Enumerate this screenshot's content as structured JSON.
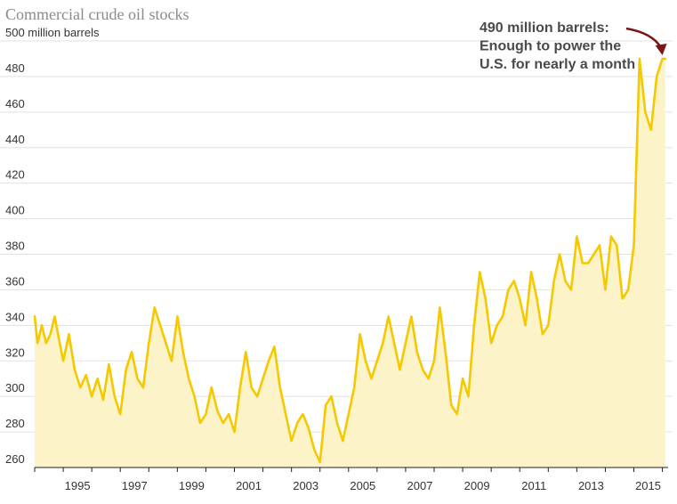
{
  "chart_data": {
    "type": "area",
    "title": "Commercial crude oil stocks",
    "ylabel": "million barrels",
    "xlabel": "",
    "ylim": [
      260,
      500
    ],
    "xlim": [
      1994.0,
      2016.2
    ],
    "y_ticks": [
      260,
      280,
      300,
      320,
      340,
      360,
      380,
      400,
      420,
      440,
      460,
      480,
      500
    ],
    "y_tick_labels": [
      "260",
      "280",
      "300",
      "320",
      "340",
      "360",
      "380",
      "400",
      "420",
      "440",
      "460",
      "480",
      "500 million barrels"
    ],
    "x_ticks": [
      1995,
      1997,
      1999,
      2001,
      2003,
      2005,
      2007,
      2009,
      2011,
      2013,
      2015
    ],
    "x_tick_labels": [
      "1995",
      "1997",
      "1999",
      "2001",
      "2003",
      "2005",
      "2007",
      "2009",
      "2011",
      "2013",
      "2015"
    ],
    "grid": "horizontal",
    "annotation": {
      "lines": [
        "490 million barrels:",
        "Enough to power the",
        "U.S. for nearly a month"
      ],
      "target": {
        "x": 2016.0,
        "y": 490
      }
    },
    "colors": {
      "line": "#f5c800",
      "fill": "#fdf3c8",
      "grid": "#e1e1e1",
      "axis": "#222222",
      "arrow": "#7a1616"
    },
    "series": [
      {
        "x": [
          1994.0,
          1994.1,
          1994.25,
          1994.4,
          1994.55,
          1994.7,
          1994.85,
          1995.0,
          1995.2,
          1995.4,
          1995.6,
          1995.8,
          1996.0,
          1996.2,
          1996.4,
          1996.6,
          1996.8,
          1997.0,
          1997.2,
          1997.4,
          1997.6,
          1997.8,
          1998.0,
          1998.2,
          1998.4,
          1998.6,
          1998.8,
          1999.0,
          1999.2,
          1999.4,
          1999.6,
          1999.8,
          2000.0,
          2000.2,
          2000.4,
          2000.6,
          2000.8,
          2001.0,
          2001.2,
          2001.4,
          2001.6,
          2001.8,
          2002.0,
          2002.2,
          2002.4,
          2002.6,
          2002.8,
          2003.0,
          2003.2,
          2003.4,
          2003.6,
          2003.8,
          2004.0,
          2004.2,
          2004.4,
          2004.6,
          2004.8,
          2005.0,
          2005.2,
          2005.4,
          2005.6,
          2005.8,
          2006.0,
          2006.2,
          2006.4,
          2006.6,
          2006.8,
          2007.0,
          2007.2,
          2007.4,
          2007.6,
          2007.8,
          2008.0,
          2008.2,
          2008.4,
          2008.6,
          2008.8,
          2009.0,
          2009.2,
          2009.4,
          2009.6,
          2009.8,
          2010.0,
          2010.2,
          2010.4,
          2010.6,
          2010.8,
          2011.0,
          2011.2,
          2011.4,
          2011.6,
          2011.8,
          2012.0,
          2012.2,
          2012.4,
          2012.6,
          2012.8,
          2013.0,
          2013.2,
          2013.4,
          2013.6,
          2013.8,
          2014.0,
          2014.2,
          2014.4,
          2014.6,
          2014.8,
          2015.0,
          2015.2,
          2015.4,
          2015.6,
          2015.8,
          2016.0,
          2016.1
        ],
        "values": [
          345,
          330,
          340,
          330,
          335,
          345,
          332,
          320,
          335,
          315,
          305,
          312,
          300,
          310,
          298,
          318,
          300,
          290,
          315,
          325,
          310,
          305,
          330,
          350,
          340,
          330,
          320,
          345,
          325,
          310,
          300,
          285,
          290,
          305,
          292,
          285,
          290,
          280,
          305,
          325,
          305,
          300,
          310,
          320,
          328,
          305,
          290,
          275,
          285,
          290,
          282,
          270,
          263,
          295,
          300,
          285,
          275,
          290,
          305,
          335,
          320,
          310,
          320,
          330,
          345,
          330,
          315,
          330,
          345,
          325,
          315,
          310,
          320,
          350,
          325,
          295,
          290,
          310,
          300,
          340,
          370,
          355,
          330,
          340,
          345,
          360,
          365,
          355,
          340,
          370,
          355,
          335,
          340,
          365,
          380,
          365,
          360,
          390,
          375,
          375,
          380,
          385,
          360,
          390,
          385,
          355,
          360,
          385,
          490,
          460,
          450,
          480,
          490,
          490
        ],
        "name": ""
      }
    ]
  }
}
